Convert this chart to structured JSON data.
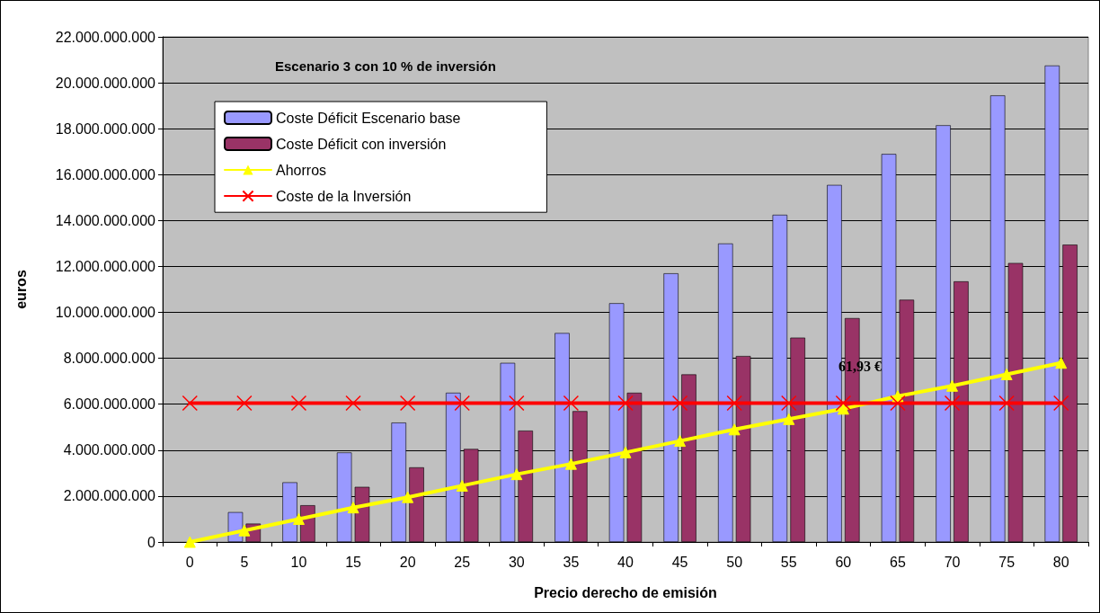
{
  "chart_data": {
    "type": "bar",
    "title": "Escenario 3 con 10 % de inversión",
    "xlabel": "Precio derecho de emisión",
    "ylabel": "euros",
    "categories": [
      "0",
      "5",
      "10",
      "15",
      "20",
      "25",
      "30",
      "35",
      "40",
      "45",
      "50",
      "55",
      "60",
      "65",
      "70",
      "75",
      "80"
    ],
    "series": [
      {
        "name": "Coste Déficit Escenario base",
        "color": "#9999ff",
        "values": [
          0,
          1300000000,
          2600000000,
          3900000000,
          5200000000,
          6500000000,
          7800000000,
          9100000000,
          10400000000,
          11700000000,
          13000000000,
          14250000000,
          15550000000,
          16900000000,
          18150000000,
          19450000000,
          20750000000
        ]
      },
      {
        "name": "Coste Déficit con inversión",
        "color": "#993366",
        "values": [
          0,
          800000000,
          1600000000,
          2400000000,
          3250000000,
          4050000000,
          4850000000,
          5700000000,
          6500000000,
          7300000000,
          8100000000,
          8900000000,
          9750000000,
          10550000000,
          11350000000,
          12150000000,
          12950000000
        ]
      },
      {
        "name": "Ahorros",
        "type": "line",
        "color": "#ffff00",
        "marker": "triangle",
        "values": [
          0,
          500000000,
          1000000000,
          1500000000,
          1950000000,
          2450000000,
          2950000000,
          3400000000,
          3900000000,
          4400000000,
          4900000000,
          5350000000,
          5800000000,
          6350000000,
          6800000000,
          7300000000,
          7800000000
        ]
      },
      {
        "name": "Coste de la Inversión",
        "type": "line",
        "color": "#ff0000",
        "marker": "cross",
        "values": [
          6050000000,
          6050000000,
          6050000000,
          6050000000,
          6050000000,
          6050000000,
          6050000000,
          6050000000,
          6050000000,
          6050000000,
          6050000000,
          6050000000,
          6050000000,
          6050000000,
          6050000000,
          6050000000,
          6050000000
        ]
      }
    ],
    "annotations": [
      "61,93 €"
    ],
    "ylim": [
      0,
      22000000000
    ],
    "yticks": [
      0,
      {
        "value": 2000000000,
        "label": "2.000.000.000"
      },
      {
        "value": 4000000000,
        "label": "4.000.000.000"
      },
      {
        "value": 6000000000,
        "label": "6.000.000.000"
      },
      {
        "value": 8000000000,
        "label": "8.000.000.000"
      },
      {
        "value": 10000000000,
        "label": "10.000.000.000"
      },
      {
        "value": 12000000000,
        "label": "12.000.000.000"
      },
      {
        "value": 14000000000,
        "label": "14.000.000.000"
      },
      {
        "value": 16000000000,
        "label": "16.000.000.000"
      },
      {
        "value": 18000000000,
        "label": "18.000.000.000"
      },
      {
        "value": 20000000000,
        "label": "20.000.000.000"
      },
      {
        "value": 22000000000,
        "label": "22.000.000.000"
      }
    ],
    "grid": "y",
    "legend": "top left"
  }
}
